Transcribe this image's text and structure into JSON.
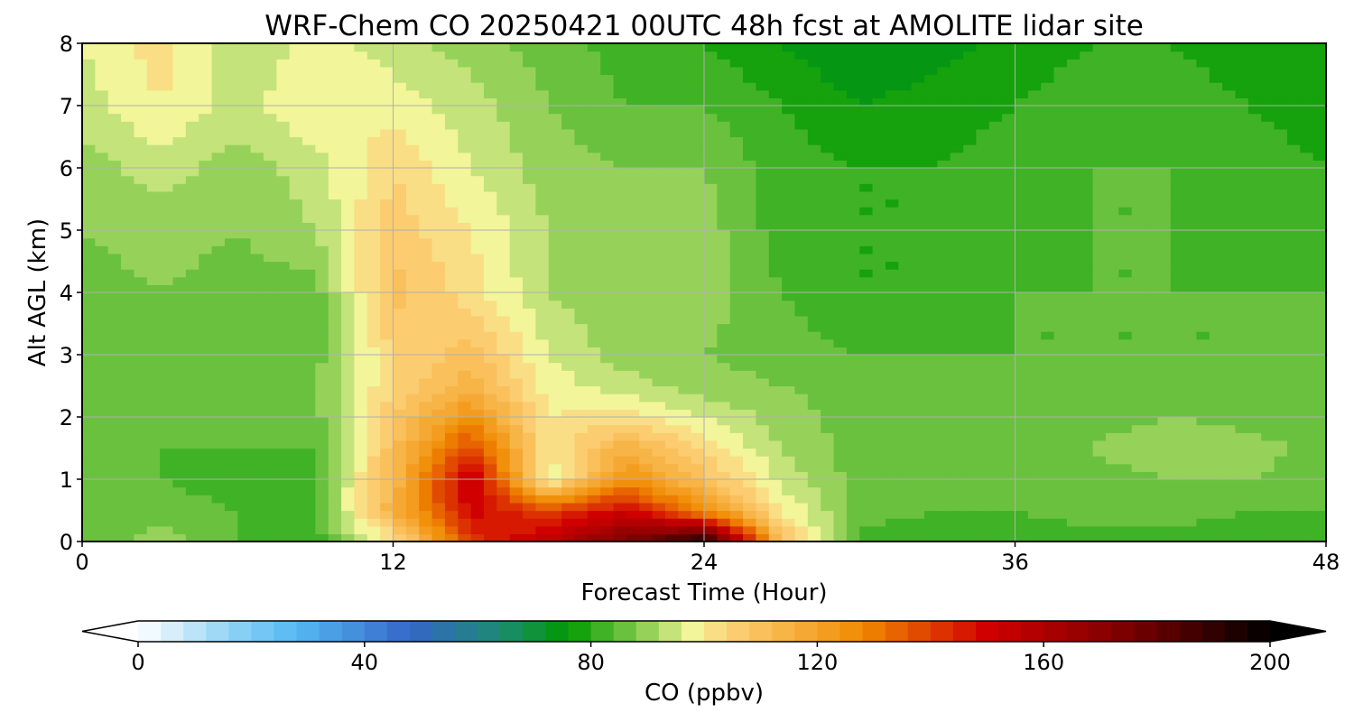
{
  "chart_data": {
    "type": "heatmap",
    "subtype": "filled-contour",
    "title": "WRF-Chem CO  20250421 00UTC 48h fcst at AMOLITE lidar site",
    "xlabel": "Forecast Time (Hour)",
    "ylabel": "Alt AGL (km)",
    "xlim": [
      0,
      48
    ],
    "ylim": [
      0,
      8
    ],
    "xticks": [
      0,
      12,
      24,
      36,
      48
    ],
    "yticks": [
      0,
      1,
      2,
      3,
      4,
      5,
      6,
      7,
      8
    ],
    "grid": true,
    "x_hours": [
      0,
      3,
      6,
      9,
      12,
      15,
      18,
      21,
      24,
      27,
      30,
      33,
      36,
      39,
      42,
      45,
      48
    ],
    "y_km": [
      0,
      0.5,
      1,
      1.5,
      2,
      2.5,
      3,
      4,
      5,
      6,
      7,
      8
    ],
    "z_ppbv": [
      [
        84,
        90,
        84,
        82,
        100,
        140,
        155,
        175,
        196,
        110,
        82,
        82,
        82,
        82,
        82,
        82,
        82
      ],
      [
        84,
        86,
        84,
        84,
        115,
        150,
        140,
        150,
        125,
        100,
        86,
        84,
        84,
        86,
        86,
        84,
        84
      ],
      [
        84,
        84,
        82,
        84,
        112,
        155,
        96,
        125,
        110,
        95,
        86,
        84,
        84,
        86,
        88,
        88,
        86
      ],
      [
        84,
        84,
        84,
        84,
        110,
        140,
        100,
        115,
        102,
        92,
        86,
        84,
        84,
        88,
        92,
        90,
        86
      ],
      [
        85,
        84,
        84,
        86,
        108,
        125,
        100,
        102,
        96,
        90,
        86,
        84,
        84,
        86,
        88,
        86,
        86
      ],
      [
        86,
        84,
        86,
        88,
        104,
        115,
        98,
        94,
        90,
        88,
        86,
        84,
        84,
        84,
        86,
        84,
        86
      ],
      [
        86,
        86,
        86,
        86,
        104,
        110,
        96,
        90,
        88,
        86,
        84,
        84,
        84,
        84,
        84,
        84,
        86
      ],
      [
        86,
        88,
        86,
        86,
        110,
        102,
        92,
        88,
        90,
        84,
        80,
        80,
        84,
        84,
        84,
        84,
        84
      ],
      [
        88,
        90,
        88,
        92,
        106,
        100,
        92,
        88,
        90,
        82,
        80,
        80,
        82,
        84,
        84,
        82,
        80
      ],
      [
        90,
        94,
        90,
        94,
        104,
        96,
        90,
        88,
        88,
        82,
        80,
        80,
        82,
        84,
        84,
        82,
        80
      ],
      [
        94,
        100,
        94,
        100,
        98,
        94,
        88,
        84,
        84,
        80,
        76,
        78,
        80,
        82,
        82,
        80,
        78
      ],
      [
        96,
        102,
        92,
        98,
        94,
        90,
        86,
        82,
        80,
        76,
        72,
        74,
        78,
        80,
        80,
        78,
        76
      ]
    ],
    "colorbar": {
      "label": "CO  (ppbv)",
      "min": 0,
      "max": 200,
      "ticks": [
        0,
        40,
        80,
        120,
        160,
        200
      ],
      "extend": "both",
      "colormap_stops": [
        {
          "v": 0,
          "c": "#ffffff"
        },
        {
          "v": 16,
          "c": "#92d3f5"
        },
        {
          "v": 28,
          "c": "#55b8f2"
        },
        {
          "v": 48,
          "c": "#3567c8"
        },
        {
          "v": 64,
          "c": "#1d8a72"
        },
        {
          "v": 76,
          "c": "#009a00"
        },
        {
          "v": 88,
          "c": "#7fc94a"
        },
        {
          "v": 98,
          "c": "#f2f59a"
        },
        {
          "v": 104,
          "c": "#fcd27a"
        },
        {
          "v": 128,
          "c": "#f08a00"
        },
        {
          "v": 150,
          "c": "#d00000"
        },
        {
          "v": 175,
          "c": "#7a0000"
        },
        {
          "v": 200,
          "c": "#000000"
        }
      ]
    }
  }
}
